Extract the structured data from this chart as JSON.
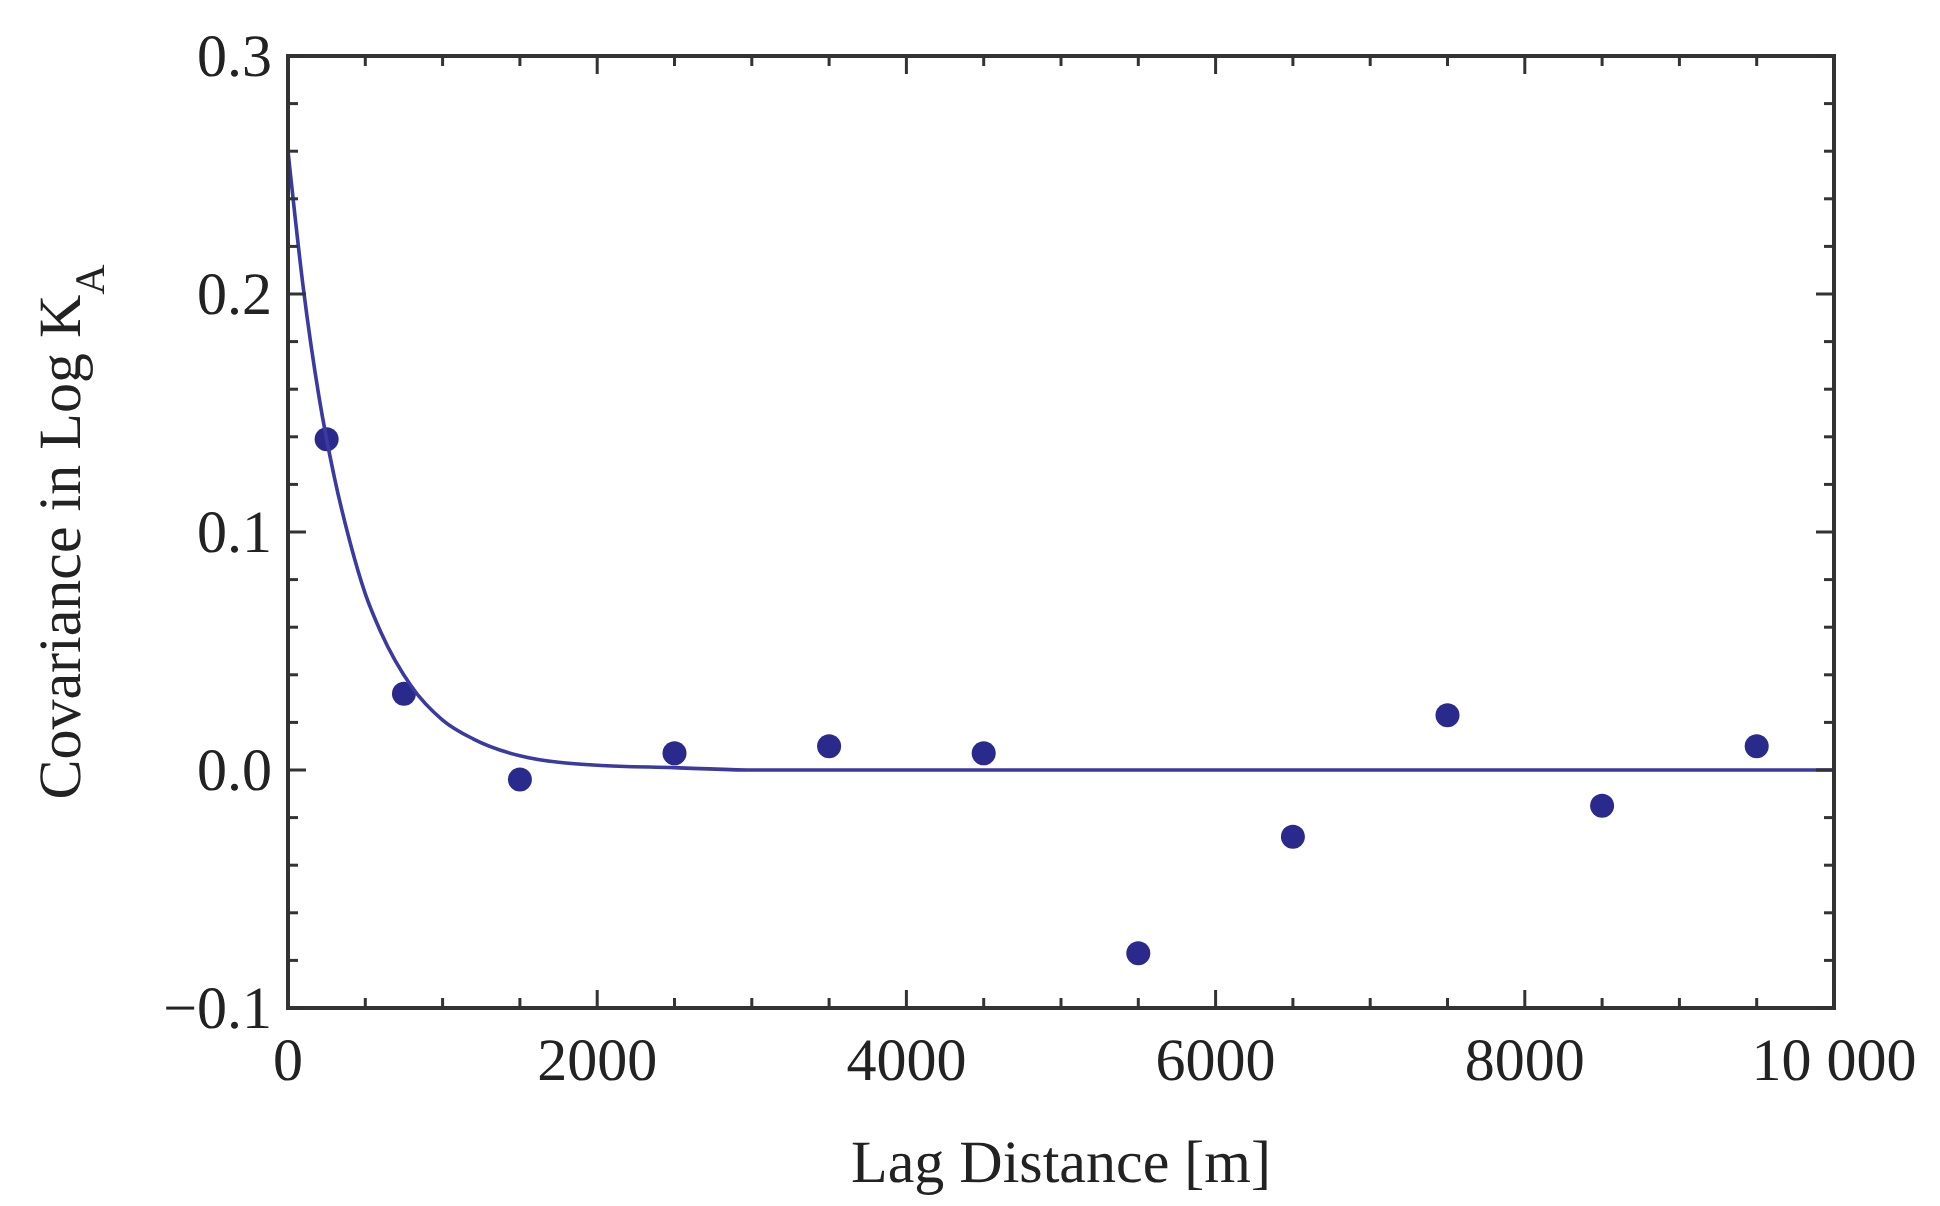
{
  "chart_data": {
    "type": "scatter",
    "xlabel": "Lag Distance [m]",
    "ylabel": "Covariance in Log K$_{A}$",
    "xlim": [
      0,
      10000
    ],
    "ylim": [
      -0.1,
      0.3
    ],
    "xticks": [
      0,
      {
        "value": 500,
        "label": null
      },
      {
        "value": 1000,
        "label": null
      },
      {
        "value": 1500,
        "label": null
      },
      2000,
      {
        "value": 2500,
        "label": null
      },
      {
        "value": 3000,
        "label": null
      },
      {
        "value": 3500,
        "label": null
      },
      4000,
      {
        "value": 4500,
        "label": null
      },
      {
        "value": 5000,
        "label": null
      },
      {
        "value": 5500,
        "label": null
      },
      6000,
      {
        "value": 6500,
        "label": null
      },
      {
        "value": 7000,
        "label": null
      },
      {
        "value": 7500,
        "label": null
      },
      8000,
      {
        "value": 8500,
        "label": null
      },
      {
        "value": 9000,
        "label": null
      },
      {
        "value": 9500,
        "label": null
      },
      {
        "value": 10000,
        "label": "10 000"
      }
    ],
    "yticks": [
      {
        "value": -0.1,
        "label": "−0.1"
      },
      {
        "value": -0.08,
        "label": null
      },
      {
        "value": -0.06,
        "label": null
      },
      {
        "value": -0.04,
        "label": null
      },
      {
        "value": -0.02,
        "label": null
      },
      {
        "value": 0,
        "label": "0.0"
      },
      {
        "value": 0.02,
        "label": null
      },
      {
        "value": 0.04,
        "label": null
      },
      {
        "value": 0.06,
        "label": null
      },
      {
        "value": 0.08,
        "label": null
      },
      {
        "value": 0.1,
        "label": "0.1"
      },
      {
        "value": 0.12,
        "label": null
      },
      {
        "value": 0.14,
        "label": null
      },
      {
        "value": 0.16,
        "label": null
      },
      {
        "value": 0.18,
        "label": null
      },
      {
        "value": 0.2,
        "label": "0.2"
      },
      {
        "value": 0.22,
        "label": null
      },
      {
        "value": 0.24,
        "label": null
      },
      {
        "value": 0.26,
        "label": null
      },
      {
        "value": 0.28,
        "label": null
      },
      {
        "value": 0.3,
        "label": "0.3"
      }
    ],
    "grid": false,
    "marker": "circle",
    "series": [
      {
        "color": "#2a2a8c",
        "x": [
          250,
          750,
          1500,
          2500,
          3500,
          4500,
          5500,
          6500,
          7500,
          8500,
          9500
        ],
        "values": [
          0.139,
          0.032,
          -0.004,
          0.007,
          0.01,
          0.007,
          -0.077,
          -0.028,
          0.023,
          -0.015,
          0.01
        ]
      },
      {
        "type": "line",
        "color": "#3a3aa0",
        "marker": "none",
        "line_style": "solid",
        "x": [
          0,
          100,
          200,
          300,
          400,
          500,
          600,
          800,
          1000,
          1200,
          1500,
          2000,
          2500,
          3000,
          10000
        ],
        "values": [
          0.26,
          0.202,
          0.157,
          0.123,
          0.096,
          0.074,
          0.058,
          0.035,
          0.021,
          0.013,
          0.006,
          0.002,
          0.001,
          0,
          0
        ]
      }
    ]
  }
}
